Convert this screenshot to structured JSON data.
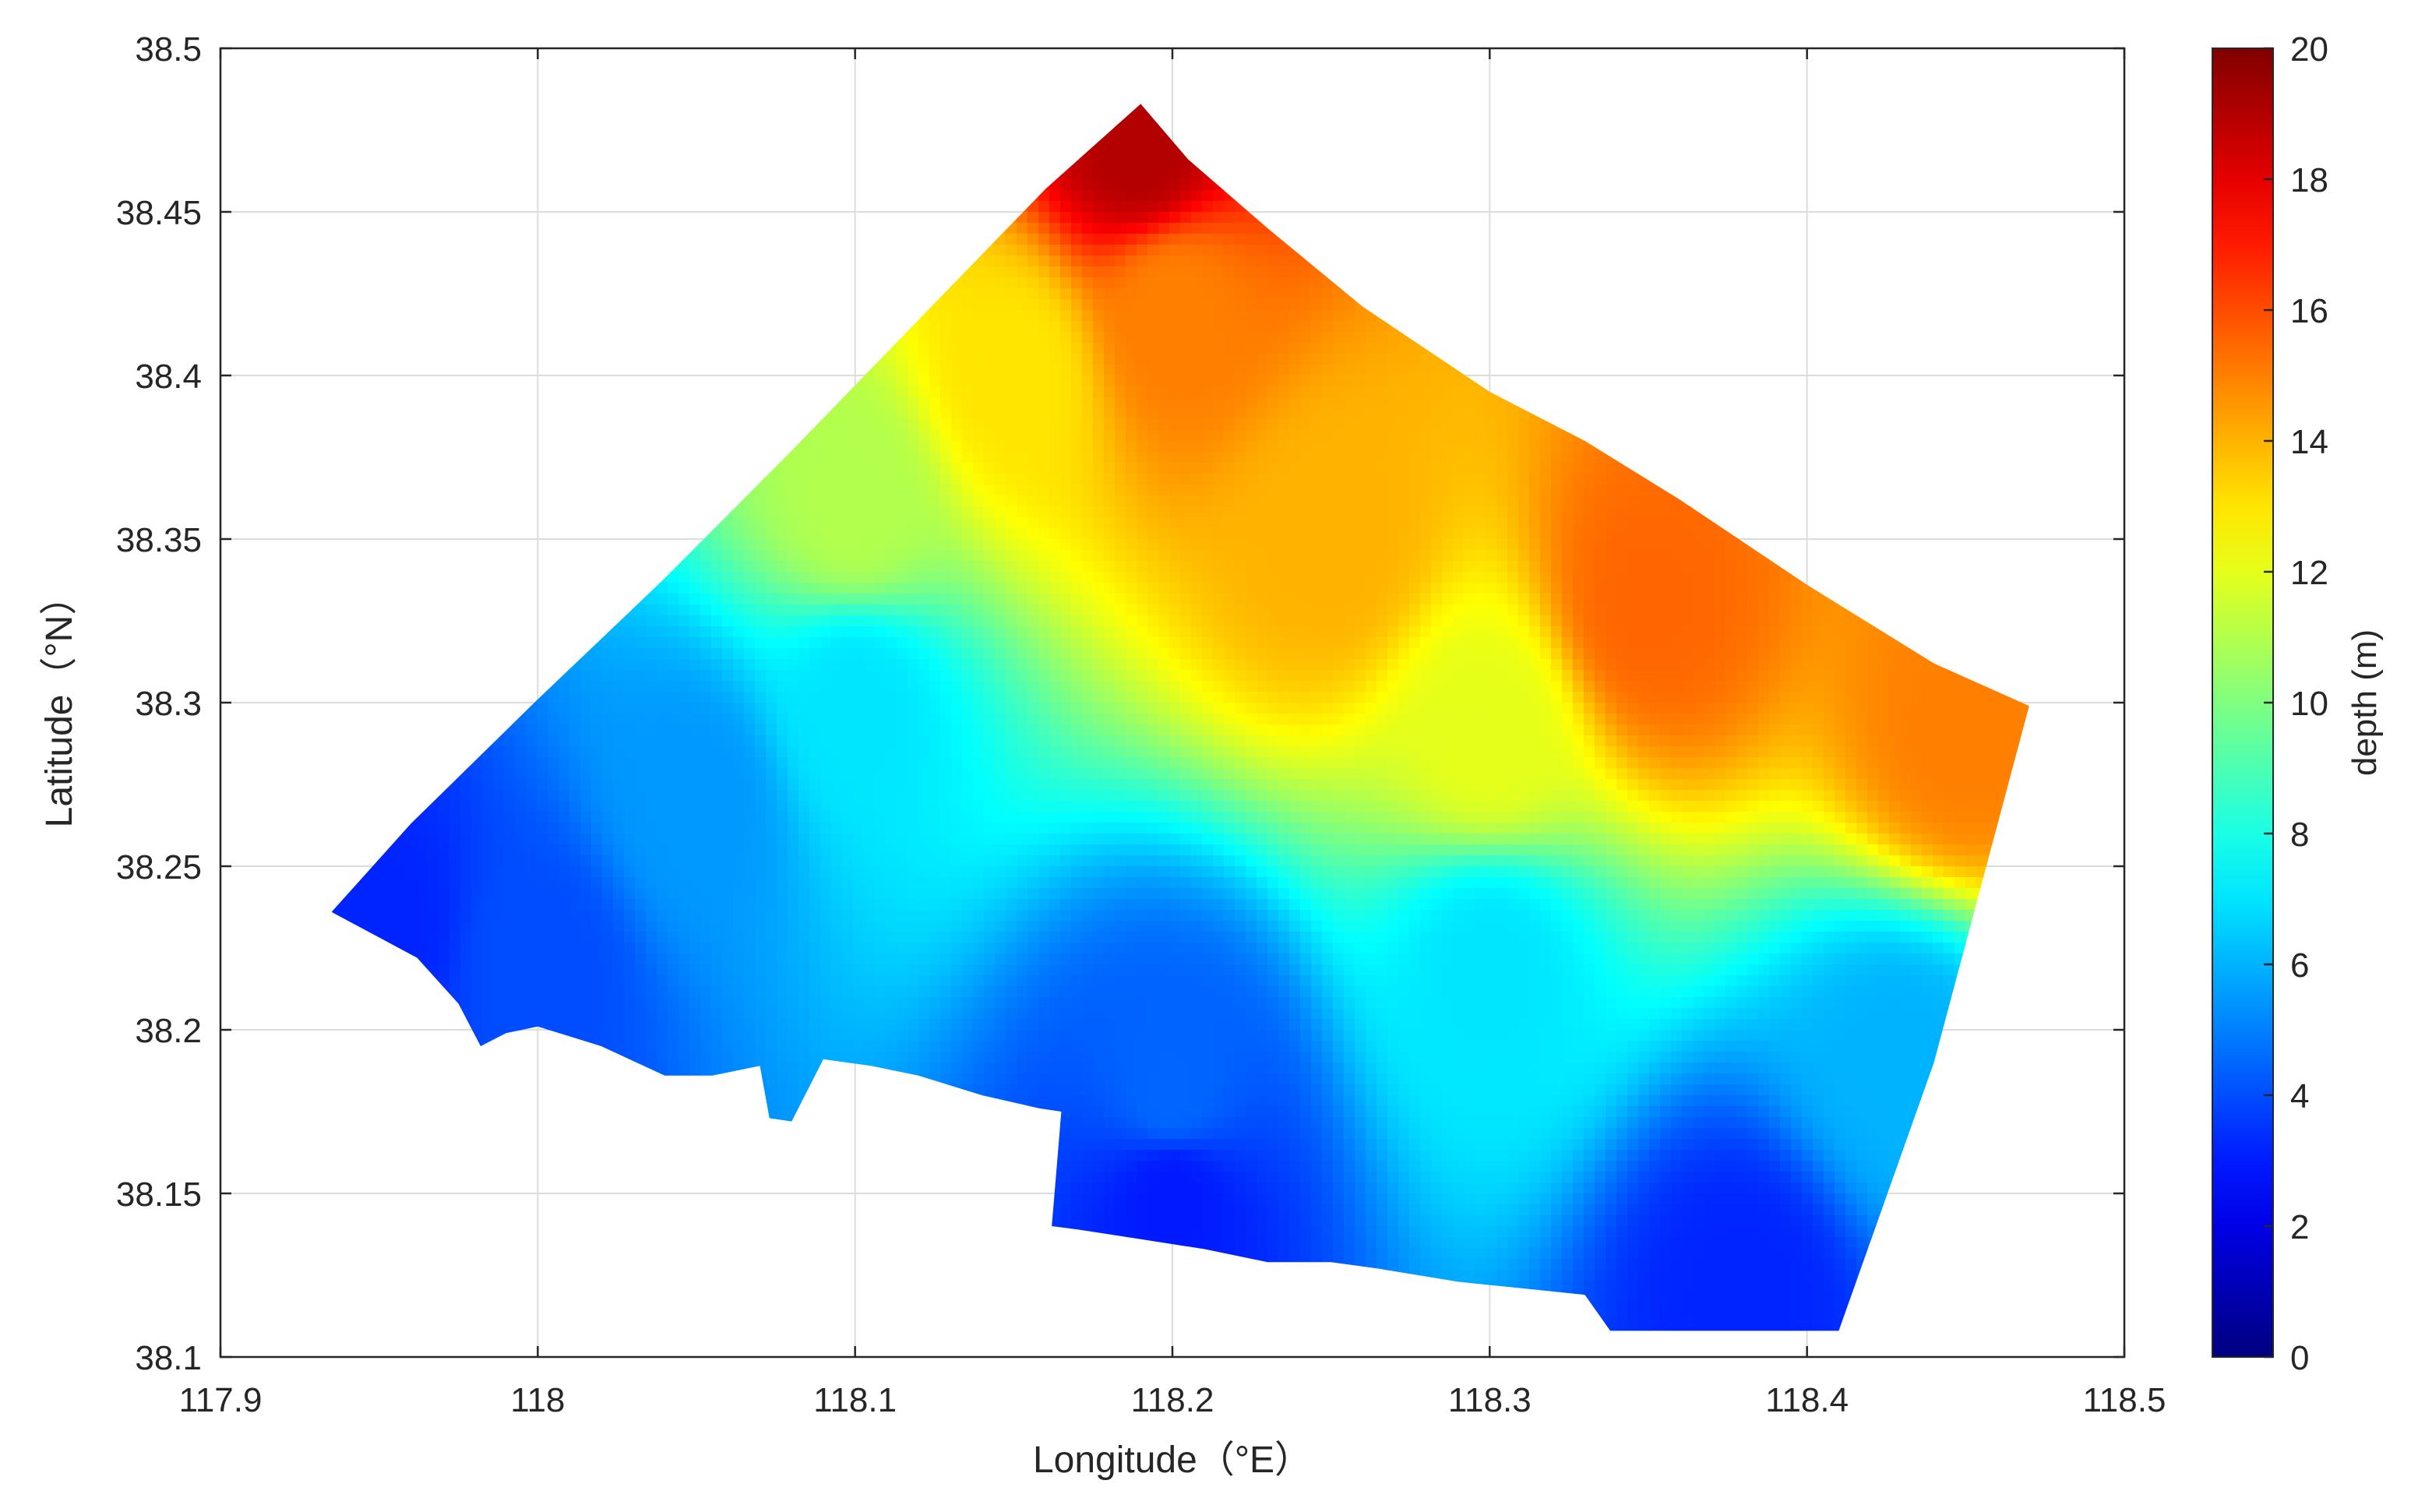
{
  "chart_data": {
    "type": "heatmap",
    "title": "",
    "xlabel": "Longitude（°E）",
    "ylabel": "Latitude（°N）",
    "xlim": [
      117.9,
      118.5
    ],
    "ylim": [
      38.1,
      38.5
    ],
    "x_ticks": [
      117.9,
      118.0,
      118.1,
      118.2,
      118.3,
      118.4,
      118.5
    ],
    "x_tick_labels": [
      "117.9",
      "118",
      "118.1",
      "118.2",
      "118.3",
      "118.4",
      "118.5"
    ],
    "y_ticks": [
      38.1,
      38.15,
      38.2,
      38.25,
      38.3,
      38.35,
      38.4,
      38.45,
      38.5
    ],
    "y_tick_labels": [
      "38.1",
      "38.15",
      "38.2",
      "38.25",
      "38.3",
      "38.35",
      "38.4",
      "38.45",
      "38.5"
    ],
    "grid": true,
    "colormap": "jet",
    "colorbar": {
      "label": "depth (m)",
      "range": [
        0,
        20
      ],
      "ticks": [
        0,
        2,
        4,
        6,
        8,
        10,
        12,
        14,
        16,
        18,
        20
      ],
      "tick_labels": [
        "0",
        "2",
        "4",
        "6",
        "8",
        "10",
        "12",
        "14",
        "16",
        "18",
        "20"
      ],
      "position": "right"
    },
    "domain_boundary": [
      [
        117.935,
        38.236
      ],
      [
        117.962,
        38.222
      ],
      [
        117.975,
        38.208
      ],
      [
        117.982,
        38.195
      ],
      [
        117.99,
        38.199
      ],
      [
        118.0,
        38.201
      ],
      [
        118.02,
        38.195
      ],
      [
        118.04,
        38.186
      ],
      [
        118.055,
        38.186
      ],
      [
        118.07,
        38.189
      ],
      [
        118.073,
        38.173
      ],
      [
        118.08,
        38.172
      ],
      [
        118.09,
        38.191
      ],
      [
        118.105,
        38.189
      ],
      [
        118.12,
        38.186
      ],
      [
        118.14,
        38.18
      ],
      [
        118.158,
        38.176
      ],
      [
        118.165,
        38.175
      ],
      [
        118.162,
        38.14
      ],
      [
        118.17,
        38.139
      ],
      [
        118.19,
        38.136
      ],
      [
        118.21,
        38.133
      ],
      [
        118.23,
        38.129
      ],
      [
        118.25,
        38.129
      ],
      [
        118.265,
        38.127
      ],
      [
        118.29,
        38.123
      ],
      [
        118.31,
        38.121
      ],
      [
        118.33,
        38.119
      ],
      [
        118.338,
        38.108
      ],
      [
        118.36,
        38.108
      ],
      [
        118.39,
        38.108
      ],
      [
        118.41,
        38.108
      ],
      [
        118.44,
        38.19
      ],
      [
        118.47,
        38.299
      ],
      [
        118.44,
        38.312
      ],
      [
        118.4,
        38.336
      ],
      [
        118.36,
        38.362
      ],
      [
        118.33,
        38.38
      ],
      [
        118.3,
        38.395
      ],
      [
        118.26,
        38.421
      ],
      [
        118.23,
        38.445
      ],
      [
        118.205,
        38.466
      ],
      [
        118.19,
        38.483
      ],
      [
        118.16,
        38.457
      ],
      [
        118.12,
        38.417
      ],
      [
        118.08,
        38.377
      ],
      [
        118.04,
        38.338
      ],
      [
        118.0,
        38.301
      ],
      [
        117.96,
        38.263
      ],
      [
        117.935,
        38.236
      ]
    ],
    "depth_field": {
      "description_points": [
        {
          "lon": 117.95,
          "lat": 38.23,
          "depth": 3.2
        },
        {
          "lon": 118.0,
          "lat": 38.22,
          "depth": 4.0
        },
        {
          "lon": 118.05,
          "lat": 38.27,
          "depth": 5.5
        },
        {
          "lon": 118.1,
          "lat": 38.3,
          "depth": 7.0
        },
        {
          "lon": 118.1,
          "lat": 38.36,
          "depth": 11.0
        },
        {
          "lon": 118.15,
          "lat": 38.4,
          "depth": 13.0
        },
        {
          "lon": 118.19,
          "lat": 38.47,
          "depth": 19.0
        },
        {
          "lon": 118.2,
          "lat": 38.42,
          "depth": 15.0
        },
        {
          "lon": 118.25,
          "lat": 38.35,
          "depth": 14.0
        },
        {
          "lon": 118.3,
          "lat": 38.29,
          "depth": 12.0
        },
        {
          "lon": 118.35,
          "lat": 38.33,
          "depth": 15.5
        },
        {
          "lon": 118.45,
          "lat": 38.29,
          "depth": 15.0
        },
        {
          "lon": 118.3,
          "lat": 38.22,
          "depth": 7.0
        },
        {
          "lon": 118.2,
          "lat": 38.18,
          "depth": 4.5
        },
        {
          "lon": 118.2,
          "lat": 38.15,
          "depth": 3.0
        },
        {
          "lon": 118.38,
          "lat": 38.12,
          "depth": 3.2
        },
        {
          "lon": 118.43,
          "lat": 38.19,
          "depth": 6.0
        }
      ]
    }
  }
}
